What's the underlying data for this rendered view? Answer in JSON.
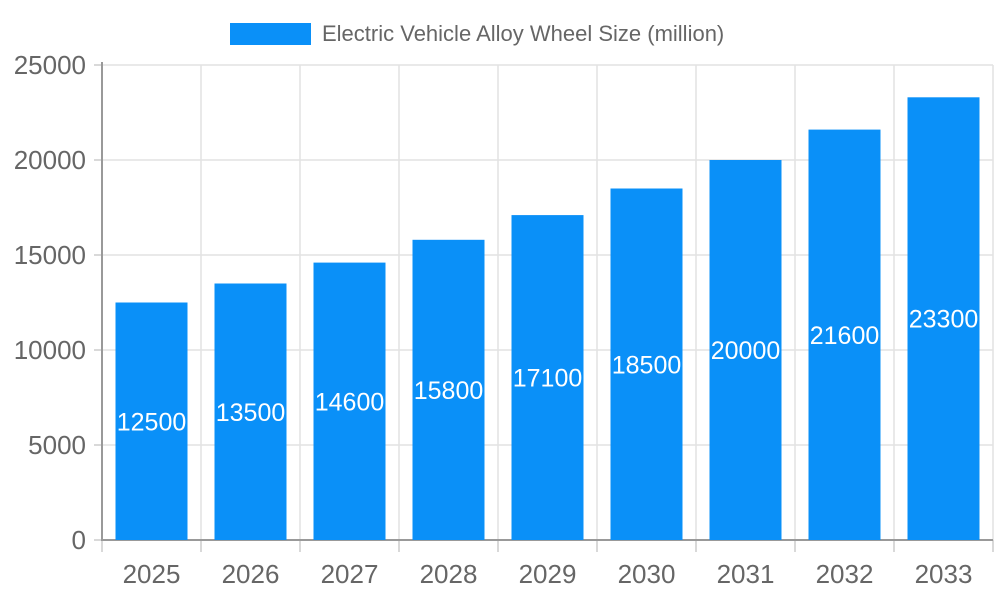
{
  "chart_data": {
    "type": "bar",
    "title": "",
    "series_name": "Electric Vehicle Alloy Wheel Size (million)",
    "categories": [
      "2025",
      "2026",
      "2027",
      "2028",
      "2029",
      "2030",
      "2031",
      "2032",
      "2033"
    ],
    "values": [
      12500,
      13500,
      14600,
      15800,
      17100,
      18500,
      20000,
      21600,
      23300
    ],
    "xlabel": "",
    "ylabel": "",
    "ylim": [
      0,
      25000
    ],
    "yticks": [
      0,
      5000,
      10000,
      15000,
      20000,
      25000
    ],
    "ytick_labels": [
      "0",
      "5000",
      "10000",
      "15000",
      "20000",
      "25000"
    ],
    "grid": true,
    "legend_position": "top-center",
    "value_labels_inside_bars": true,
    "colors": {
      "bar": "#0A90F8",
      "axis_label": "#666666",
      "value_label": "#ffffff",
      "grid_line": "#e2e2e2",
      "axis_line": "#999999",
      "tick_line": "#cccccc",
      "background": "#ffffff"
    }
  }
}
